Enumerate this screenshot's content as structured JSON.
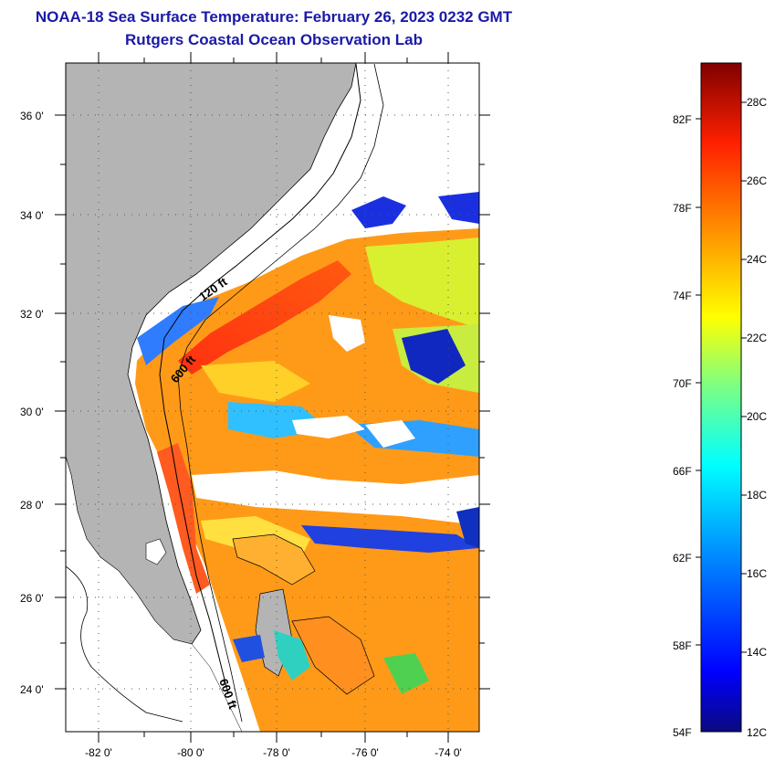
{
  "title": {
    "line1": "NOAA-18 Sea Surface Temperature:  February 26, 2023 0232 GMT",
    "line2": "Rutgers Coastal Ocean Observation Lab"
  },
  "map": {
    "lat_labels": [
      "36 0'",
      "34 0'",
      "32 0'",
      "30 0'",
      "28 0'",
      "26 0'",
      "24 0'"
    ],
    "lon_labels": [
      "-82 0'",
      "-80 0'",
      "-78 0'",
      "-76 0'",
      "-74 0'"
    ],
    "contour_labels": [
      "120 ft",
      "600 ft",
      "600 ft"
    ],
    "colors": {
      "land": "#b4b4b4",
      "cloud": "#ffffff",
      "frame": "#000000"
    }
  },
  "colorbar": {
    "fahrenheit_labels": [
      "82F",
      "78F",
      "74F",
      "70F",
      "66F",
      "62F",
      "58F",
      "54F"
    ],
    "celsius_labels": [
      "28C",
      "26C",
      "24C",
      "22C",
      "20C",
      "18C",
      "16C",
      "14C",
      "12C"
    ],
    "scale_colors": [
      "#800000",
      "#ff0000",
      "#ff8000",
      "#ffff00",
      "#80ff80",
      "#00ffff",
      "#0080ff",
      "#0000ff",
      "#000080"
    ]
  }
}
